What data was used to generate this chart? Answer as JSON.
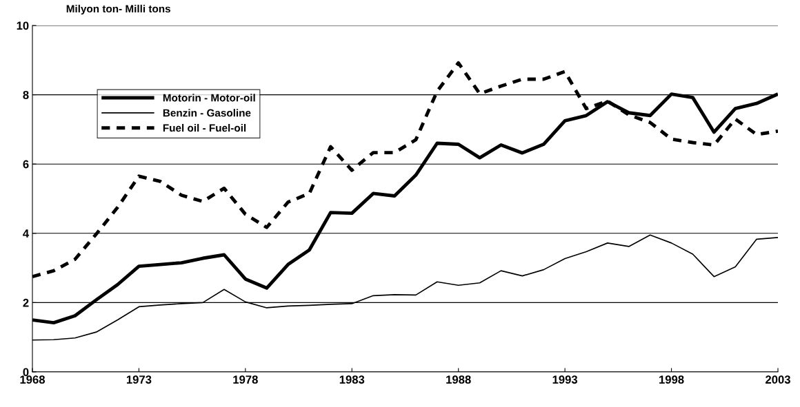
{
  "chart_data": {
    "type": "line",
    "ylabel": "Milyon ton- Milli tons",
    "x": [
      1968,
      1969,
      1970,
      1971,
      1972,
      1973,
      1974,
      1975,
      1976,
      1977,
      1978,
      1979,
      1980,
      1981,
      1982,
      1983,
      1984,
      1985,
      1986,
      1987,
      1988,
      1989,
      1990,
      1991,
      1992,
      1993,
      1994,
      1995,
      1996,
      1997,
      1998,
      1999,
      2000,
      2001,
      2002,
      2003
    ],
    "series": [
      {
        "name": "Motorin - Motor-oil",
        "color": "#000000",
        "line_style": "solid",
        "values": [
          1.5,
          1.42,
          1.62,
          2.08,
          2.52,
          3.05,
          3.1,
          3.15,
          3.28,
          3.38,
          2.68,
          2.42,
          3.1,
          3.52,
          4.6,
          4.58,
          5.15,
          5.08,
          5.68,
          6.6,
          6.57,
          6.18,
          6.55,
          6.32,
          6.57,
          7.25,
          7.4,
          7.8,
          7.48,
          7.4,
          8.02,
          7.92,
          6.92,
          7.6,
          7.75,
          8.02
        ]
      },
      {
        "name": "Benzin - Gasoline",
        "color": "#000000",
        "line_style": "solid",
        "values": [
          0.92,
          0.93,
          0.98,
          1.15,
          1.5,
          1.88,
          1.93,
          1.97,
          2.0,
          2.38,
          2.02,
          1.85,
          1.9,
          1.92,
          1.95,
          1.97,
          2.2,
          2.23,
          2.22,
          2.6,
          2.5,
          2.57,
          2.92,
          2.77,
          2.95,
          3.27,
          3.47,
          3.72,
          3.62,
          3.95,
          3.72,
          3.4,
          2.75,
          3.03,
          3.83,
          3.88
        ]
      },
      {
        "name": "Fuel oil - Fuel-oil",
        "color": "#000000",
        "line_style": "dashed",
        "values": [
          2.75,
          2.92,
          3.25,
          3.98,
          4.75,
          5.65,
          5.5,
          5.1,
          4.92,
          5.3,
          4.55,
          4.17,
          4.9,
          5.15,
          6.5,
          5.82,
          6.33,
          6.33,
          6.7,
          8.1,
          8.92,
          8.03,
          8.25,
          8.45,
          8.45,
          8.67,
          7.6,
          7.82,
          7.42,
          7.2,
          6.72,
          6.62,
          6.55,
          7.3,
          6.85,
          6.95
        ]
      }
    ],
    "xlim": [
      1968,
      2003
    ],
    "xticks": [
      1968,
      1973,
      1978,
      1983,
      1988,
      1993,
      1998,
      2003
    ],
    "ylim": [
      0,
      10
    ],
    "yticks": [
      0,
      2,
      4,
      6,
      8,
      10
    ],
    "grid": "y",
    "legend": "top left",
    "marker": "none"
  }
}
